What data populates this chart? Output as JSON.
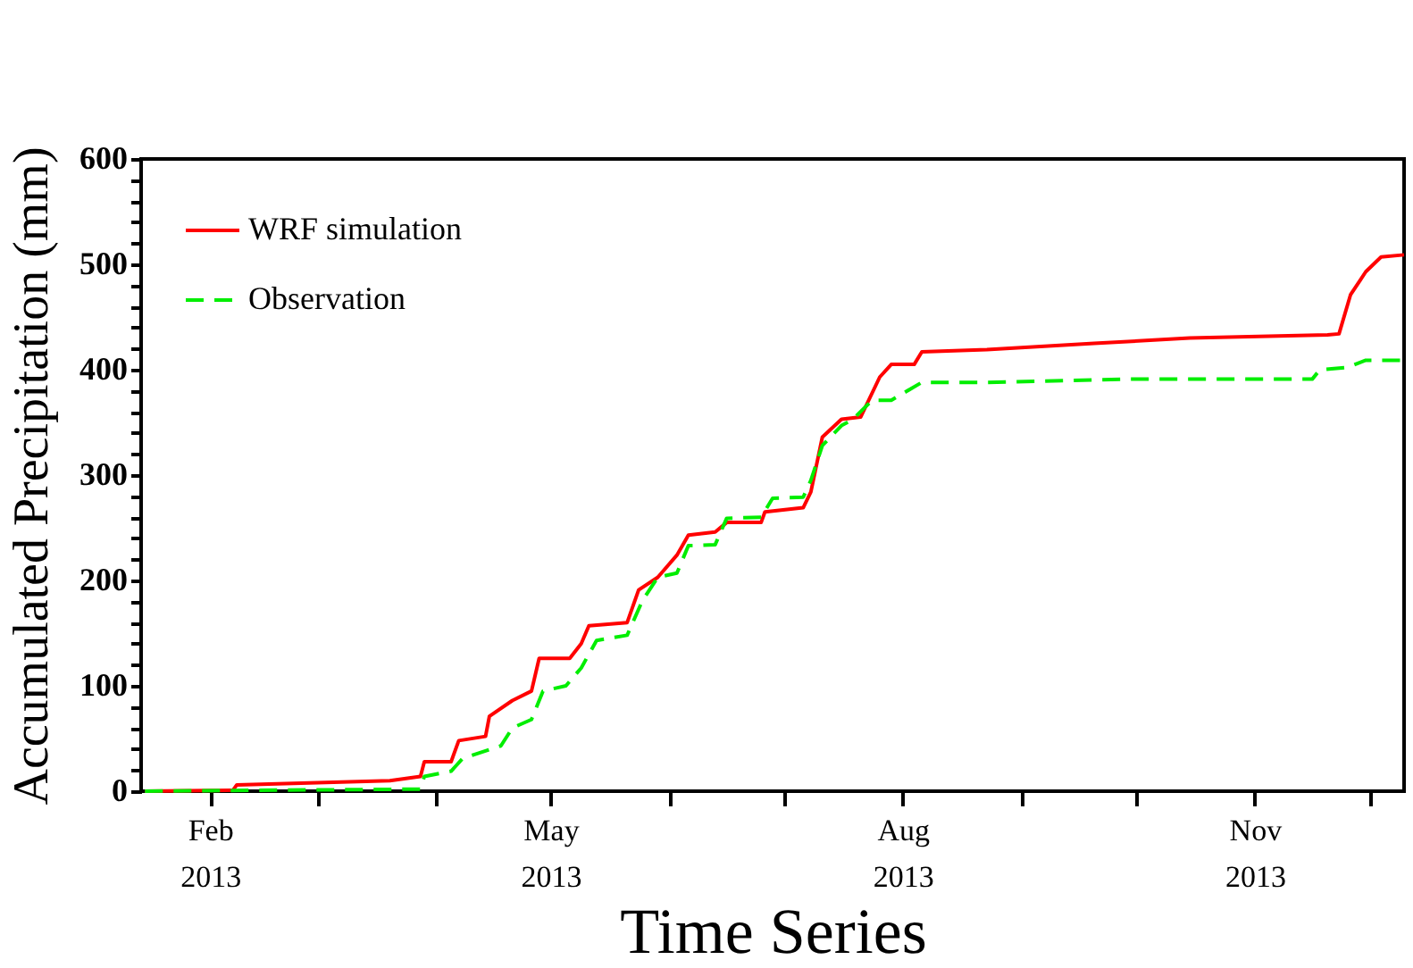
{
  "chart_data": {
    "type": "line",
    "xlabel": "Time Series",
    "ylabel": "Accumulated Precipitation (mm)",
    "xlim": [
      "2013-01-14",
      "2013-12-10"
    ],
    "xticks": [
      {
        "value": "2013-02-01",
        "label": "Feb\n2013"
      },
      {
        "value": "2013-03-01",
        "label": null
      },
      {
        "value": "2013-04-01",
        "label": null
      },
      {
        "value": "2013-05-01",
        "label": "May\n2013"
      },
      {
        "value": "2013-06-01",
        "label": null
      },
      {
        "value": "2013-07-01",
        "label": null
      },
      {
        "value": "2013-08-01",
        "label": "Aug\n2013"
      },
      {
        "value": "2013-09-01",
        "label": null
      },
      {
        "value": "2013-10-01",
        "label": null
      },
      {
        "value": "2013-11-01",
        "label": "Nov\n2013"
      },
      {
        "value": "2013-12-01",
        "label": null
      }
    ],
    "ylim": [
      0,
      600
    ],
    "yticks": [
      0,
      {
        "value": 20,
        "label": null
      },
      {
        "value": 40,
        "label": null
      },
      {
        "value": 60,
        "label": null
      },
      {
        "value": 80,
        "label": null
      },
      100,
      {
        "value": 120,
        "label": null
      },
      {
        "value": 140,
        "label": null
      },
      {
        "value": 160,
        "label": null
      },
      {
        "value": 180,
        "label": null
      },
      200,
      {
        "value": 220,
        "label": null
      },
      {
        "value": 240,
        "label": null
      },
      {
        "value": 260,
        "label": null
      },
      {
        "value": 280,
        "label": null
      },
      300,
      {
        "value": 320,
        "label": null
      },
      {
        "value": 340,
        "label": null
      },
      {
        "value": 360,
        "label": null
      },
      {
        "value": 380,
        "label": null
      },
      400,
      {
        "value": 420,
        "label": null
      },
      {
        "value": 440,
        "label": null
      },
      {
        "value": 460,
        "label": null
      },
      {
        "value": 480,
        "label": null
      },
      500,
      {
        "value": 520,
        "label": null
      },
      {
        "value": 540,
        "label": null
      },
      {
        "value": 560,
        "label": null
      },
      {
        "value": 580,
        "label": null
      },
      600
    ],
    "grid": false,
    "legend": "top left",
    "series": [
      {
        "name": "WRF simulation",
        "color": "#ff0000",
        "line_style": "solid",
        "x": [
          "2013-01-15",
          "2013-02-07",
          "2013-02-08",
          "2013-03-20",
          "2013-03-28",
          "2013-03-29",
          "2013-04-05",
          "2013-04-07",
          "2013-04-14",
          "2013-04-15",
          "2013-04-21",
          "2013-04-26",
          "2013-04-28",
          "2013-05-06",
          "2013-05-09",
          "2013-05-11",
          "2013-05-21",
          "2013-05-24",
          "2013-05-29",
          "2013-06-03",
          "2013-06-06",
          "2013-06-13",
          "2013-06-16",
          "2013-06-25",
          "2013-06-26",
          "2013-07-06",
          "2013-07-08",
          "2013-07-11",
          "2013-07-16",
          "2013-07-21",
          "2013-07-26",
          "2013-07-29",
          "2013-08-04",
          "2013-08-06",
          "2013-08-23",
          "2013-09-20",
          "2013-10-15",
          "2013-11-20",
          "2013-11-23",
          "2013-11-26",
          "2013-11-30",
          "2013-12-04",
          "2013-12-10"
        ],
        "values": [
          0,
          1,
          6,
          10,
          14,
          28,
          28,
          48,
          52,
          71,
          86,
          95,
          126,
          126,
          140,
          157,
          160,
          191,
          203,
          224,
          243,
          246,
          255,
          255,
          265,
          269,
          284,
          336,
          353,
          355,
          393,
          405,
          405,
          417,
          419,
          425,
          430,
          433,
          434,
          471,
          493,
          507,
          509
        ]
      },
      {
        "name": "Observation",
        "color": "#00ee00",
        "line_style": "dashed",
        "x": [
          "2013-01-15",
          "2013-03-28",
          "2013-03-29",
          "2013-04-05",
          "2013-04-08",
          "2013-04-18",
          "2013-04-21",
          "2013-04-26",
          "2013-04-29",
          "2013-05-05",
          "2013-05-09",
          "2013-05-13",
          "2013-05-21",
          "2013-05-25",
          "2013-05-29",
          "2013-06-03",
          "2013-06-06",
          "2013-06-13",
          "2013-06-16",
          "2013-06-25",
          "2013-06-28",
          "2013-07-06",
          "2013-07-08",
          "2013-07-11",
          "2013-07-16",
          "2013-07-19",
          "2013-07-24",
          "2013-07-29",
          "2013-08-06",
          "2013-08-23",
          "2013-09-28",
          "2013-11-16",
          "2013-11-18",
          "2013-11-25",
          "2013-11-30",
          "2013-12-10"
        ],
        "values": [
          0,
          2,
          14,
          19,
          31,
          43,
          60,
          68,
          95,
          100,
          117,
          143,
          148,
          181,
          203,
          207,
          233,
          234,
          259,
          260,
          278,
          279,
          295,
          328,
          347,
          353,
          371,
          371,
          388,
          388,
          391,
          391,
          400,
          402,
          409,
          409
        ]
      }
    ]
  }
}
